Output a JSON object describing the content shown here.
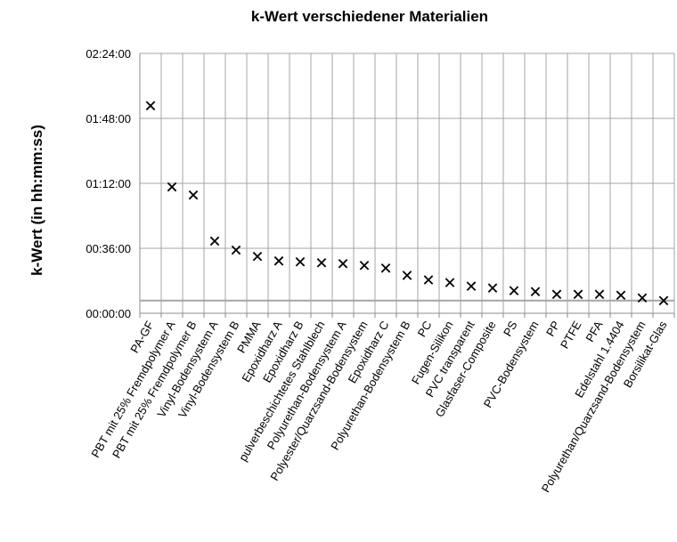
{
  "chart_data": {
    "type": "scatter",
    "title": "k-Wert verschiedener Materialien",
    "ylabel": "k-Wert (in hh:mm:ss)",
    "xlabel": "",
    "y_unit": "hh:mm:ss",
    "ylim": [
      "00:00:00",
      "02:24:00"
    ],
    "yticks": [
      "00:00:00",
      "00:36:00",
      "01:12:00",
      "01:48:00",
      "02:24:00"
    ],
    "grid": true,
    "legend": "none",
    "marker": "x",
    "marker_color": "#000000",
    "grid_color": "#a6a6a6",
    "reference_line": {
      "y": "00:07:00",
      "color": "#a6a6a6"
    },
    "categories": [
      "PA-GF",
      "PBT mit 25% Fremdpolymer A",
      "PBT mit 25% Fremdpolymer B",
      "Vinyl-Bodensystem A",
      "Vinyl-Bodensystem B",
      "PMMA",
      "Epoxidharz A",
      "Epoxidharz B",
      "pulverbeschichtetes Stahlblech",
      "Polyurethan-Bodensystem A",
      "Polyester/Quarzsand-Bodensystem",
      "Epoxidharz C",
      "Polyurethan-Bodensystem B",
      "PC",
      "Fugen-Silikon",
      "PVC transparent",
      "Glasfaser-Composite",
      "PS",
      "PVC-Bodensystem",
      "PP",
      "PTFE",
      "PFA",
      "Edelstahl 1.4404",
      "Polyurethan/Quarzsand-Bodensystem",
      "Borsilikat-Glas"
    ],
    "values": [
      "01:55:00",
      "01:10:00",
      "01:05:30",
      "00:40:00",
      "00:35:00",
      "00:31:30",
      "00:29:00",
      "00:28:30",
      "00:28:00",
      "00:27:30",
      "00:26:30",
      "00:25:00",
      "00:21:00",
      "00:18:30",
      "00:17:00",
      "00:15:00",
      "00:14:00",
      "00:12:30",
      "00:12:00",
      "00:10:30",
      "00:10:30",
      "00:10:30",
      "00:10:00",
      "00:08:30",
      "00:07:00"
    ]
  }
}
